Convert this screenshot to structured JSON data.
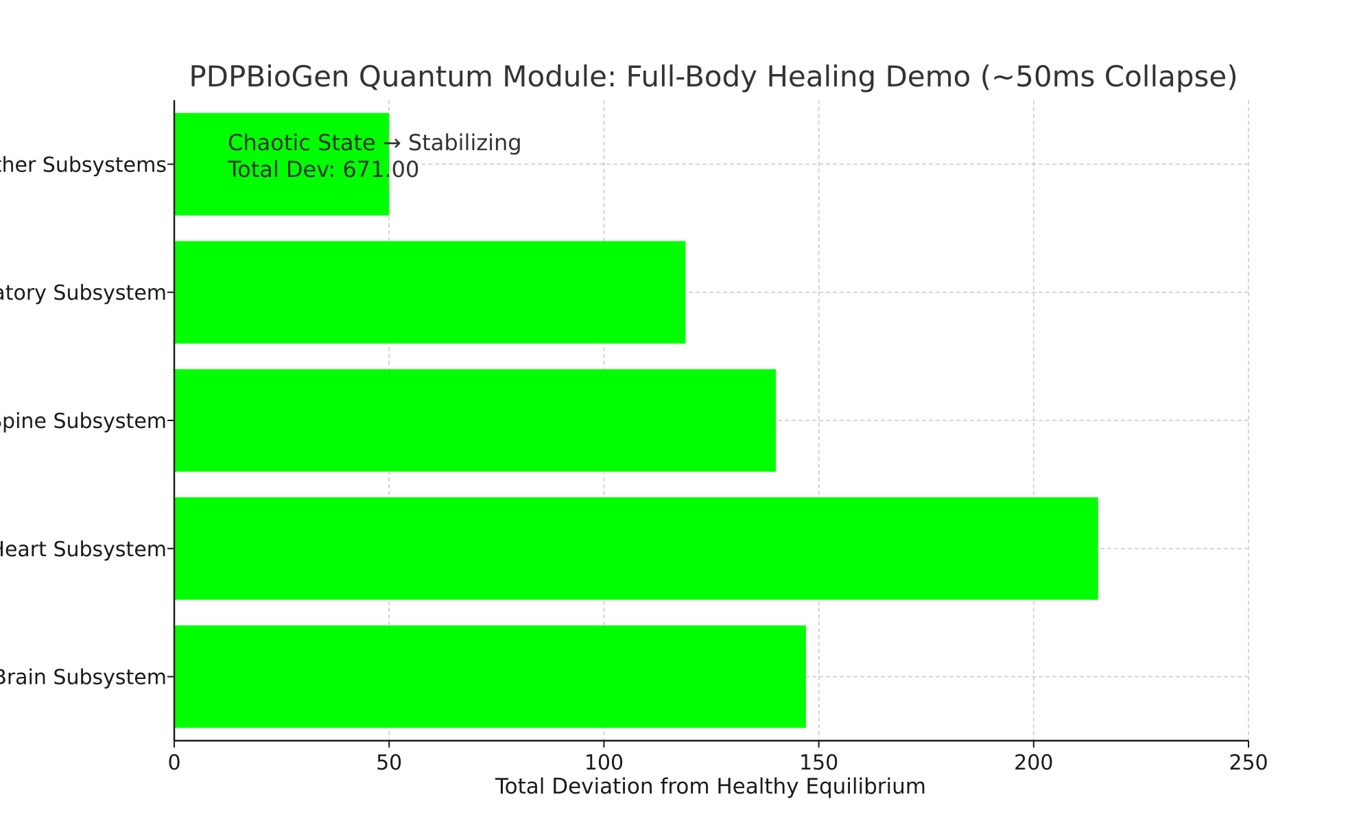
{
  "chart_data": {
    "type": "bar",
    "orientation": "horizontal",
    "title": "PDPBioGen Quantum Module: Full-Body Healing Demo (~50ms Collapse)",
    "xlabel": "Total Deviation from Healthy Equilibrium",
    "ylabel": "",
    "categories": [
      "Brain Subsystem",
      "Heart Subsystem",
      "Spine Subsystem",
      "Respiratory Subsystem",
      "Other Subsystems"
    ],
    "values": [
      147,
      215,
      140,
      119,
      50
    ],
    "xlim": [
      0,
      250
    ],
    "xticks": [
      0,
      50,
      100,
      150,
      200,
      250
    ],
    "grid": true,
    "bar_color": "#00ff00",
    "annotation": {
      "line1": "Chaotic State → Stabilizing",
      "line2": "Total Dev: 671.00"
    }
  }
}
